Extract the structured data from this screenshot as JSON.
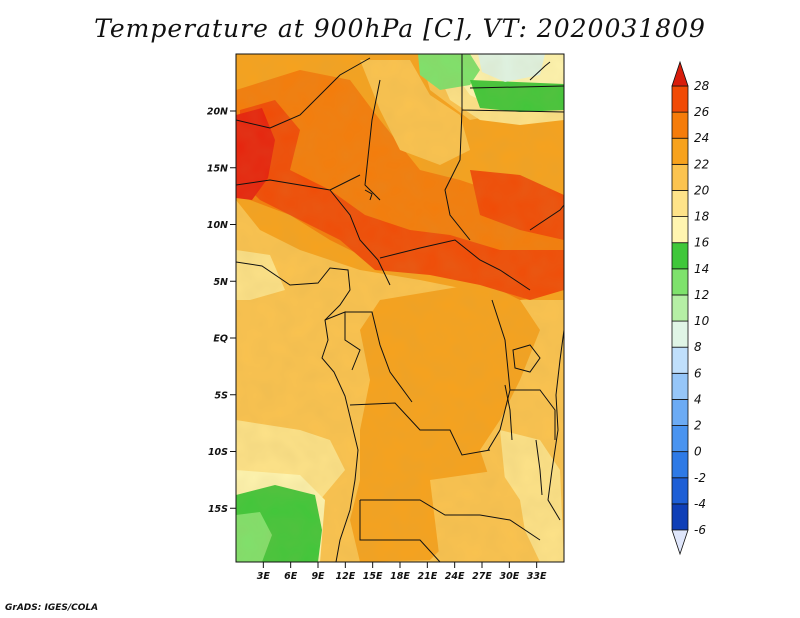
{
  "title": "Temperature at 900hPa [C], VT: 2020031809",
  "credit": "GrADS: IGES/COLA",
  "axes": {
    "lat_ticks": [
      {
        "label": "20N",
        "value": 20
      },
      {
        "label": "15N",
        "value": 15
      },
      {
        "label": "10N",
        "value": 10
      },
      {
        "label": "5N",
        "value": 5
      },
      {
        "label": "EQ",
        "value": 0
      },
      {
        "label": "5S",
        "value": -5
      },
      {
        "label": "10S",
        "value": -10
      },
      {
        "label": "15S",
        "value": -15
      }
    ],
    "lon_ticks": [
      {
        "label": "3E",
        "value": 3
      },
      {
        "label": "6E",
        "value": 6
      },
      {
        "label": "9E",
        "value": 9
      },
      {
        "label": "12E",
        "value": 12
      },
      {
        "label": "15E",
        "value": 15
      },
      {
        "label": "18E",
        "value": 18
      },
      {
        "label": "21E",
        "value": 21
      },
      {
        "label": "24E",
        "value": 24
      },
      {
        "label": "27E",
        "value": 27
      },
      {
        "label": "30E",
        "value": 30
      },
      {
        "label": "33E",
        "value": 33
      }
    ]
  },
  "colorbar": {
    "levels": [
      "-6",
      "-4",
      "-2",
      "0",
      "2",
      "4",
      "6",
      "8",
      "10",
      "12",
      "14",
      "16",
      "18",
      "20",
      "22",
      "24",
      "26",
      "28"
    ],
    "colors": [
      "#0a1f82",
      "#0f3fb7",
      "#1e5fd6",
      "#2e7ae6",
      "#4a94f0",
      "#6cabf4",
      "#96c6f8",
      "#c0dffb",
      "#e0f5e6",
      "#b5efa5",
      "#7ee26c",
      "#3fc73a",
      "#fff5b0",
      "#fee389",
      "#fbc34f",
      "#f7a21d",
      "#f57c0a",
      "#f14b06",
      "#e8200b"
    ],
    "low_cap": "#dfe6fb",
    "high_cap": "#d81d0c"
  }
}
